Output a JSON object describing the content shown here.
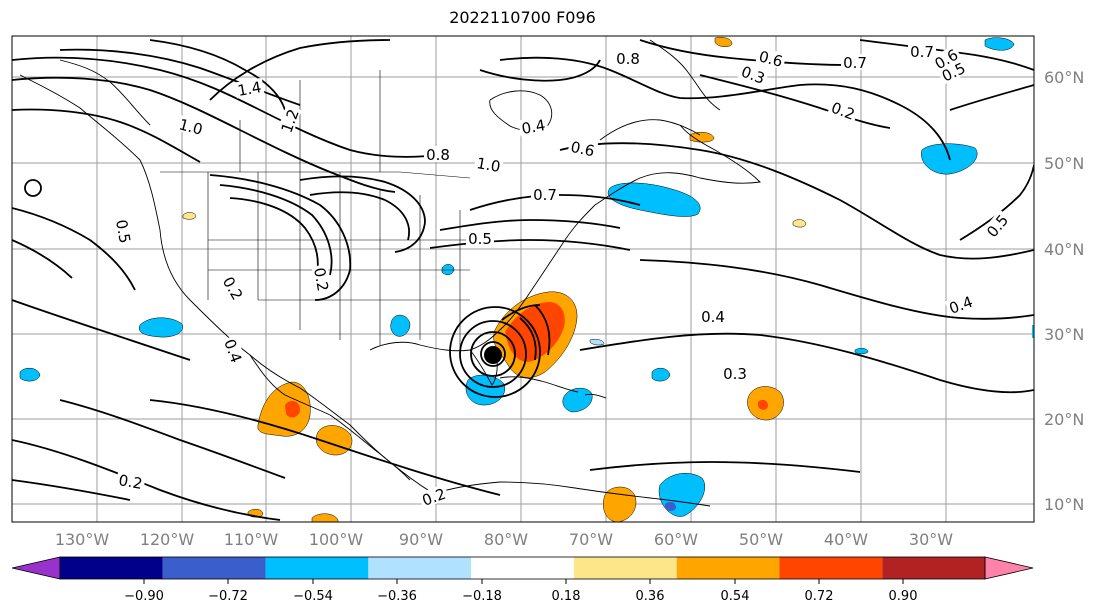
{
  "title": "2022110700 F096",
  "latitude_labels": [
    "60°N",
    "50°N",
    "40°N",
    "30°N",
    "20°N",
    "10°N"
  ],
  "longitude_labels": [
    "130°W",
    "120°W",
    "110°W",
    "100°W",
    "90°W",
    "80°W",
    "70°W",
    "60°W",
    "50°W",
    "40°W",
    "30°W"
  ],
  "colorbar": {
    "ticks": [
      "−0.90",
      "−0.72",
      "−0.54",
      "−0.36",
      "−0.18",
      "0.18",
      "0.36",
      "0.54",
      "0.72",
      "0.90"
    ],
    "colors": [
      "#9932cc",
      "#00008b",
      "#3a5fcd",
      "#00bfff",
      "#b0e2ff",
      "#ffffff",
      "#fde68a",
      "#ffa500",
      "#ff4500",
      "#b22222",
      "#ff82ab"
    ]
  },
  "contour_labels": [
    "1.4",
    "1.2",
    "1.0",
    "0.8",
    "1.0",
    "0.4",
    "0.6",
    "0.7",
    "0.5",
    "0.8",
    "0.6",
    "0.7",
    "0.6",
    "0.5",
    "0.7",
    "0.3",
    "0.2",
    "0.5",
    "0.5",
    "0.2",
    "0.2",
    "0.4",
    "0.4",
    "0.3",
    "0.2",
    "0.2",
    "0.4"
  ],
  "storm_marker": "hurricane-center"
}
